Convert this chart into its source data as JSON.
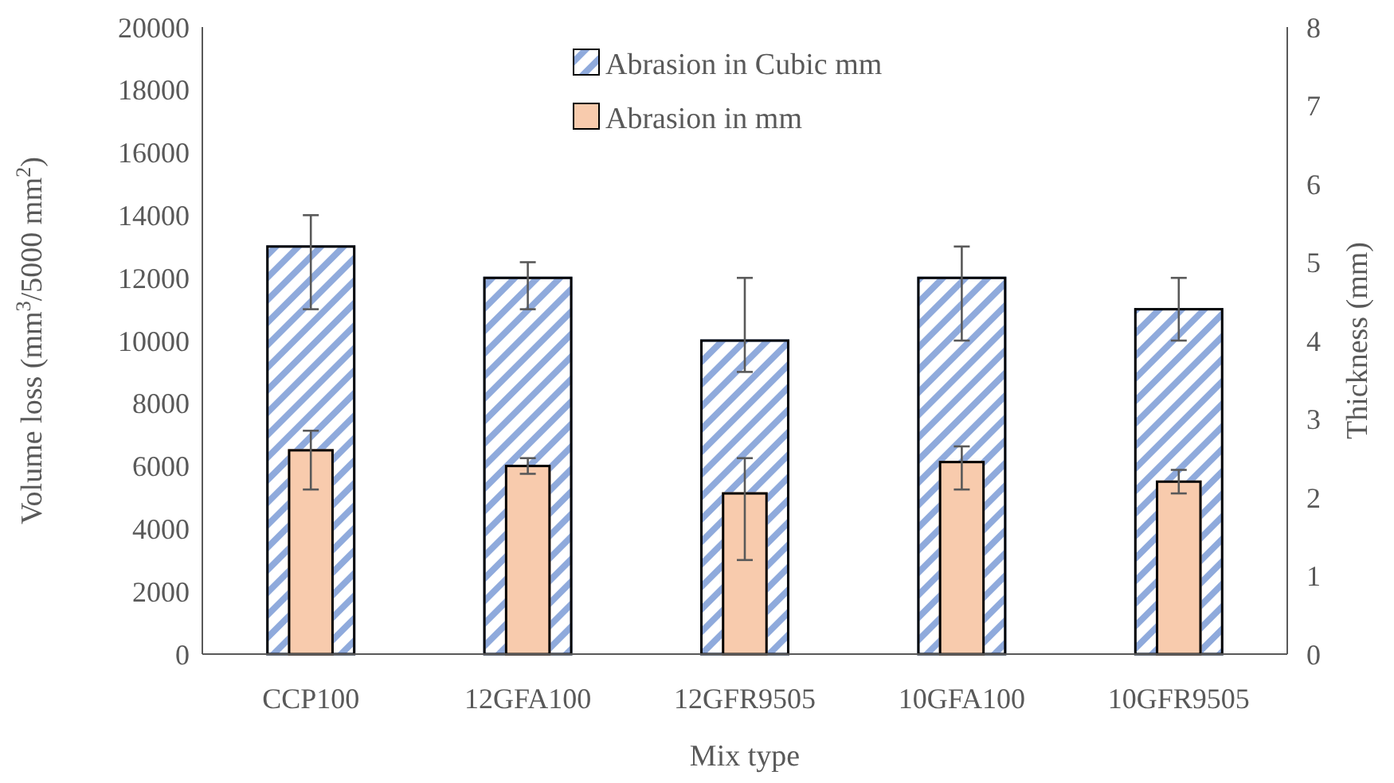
{
  "chart_data": {
    "type": "bar",
    "xlabel": "Mix type",
    "ylabel": "Volume loss (mm$^{3}$/5000 mm$^{2}$)",
    "y2label": "Thickness (mm)",
    "categories": [
      "CCP100",
      "12GFA100",
      "12GFR9505",
      "10GFA100",
      "10GFR9505"
    ],
    "series": [
      {
        "name": "Abrasion in Cubic mm",
        "color": "#8faadc",
        "values": [
          13000,
          12000,
          10000,
          12000,
          11000
        ],
        "errors": [
          [
            11000,
            14000
          ],
          [
            11000,
            12500
          ],
          [
            9000,
            12000
          ],
          [
            10000,
            13000
          ],
          [
            10000,
            12000
          ]
        ]
      },
      {
        "name": "Abrasion in mm",
        "color": "#f8cbad",
        "axis": "y2",
        "values": [
          2.6,
          2.4,
          2.05,
          2.45,
          2.2
        ],
        "errors": [
          [
            2.1,
            2.85
          ],
          [
            2.3,
            2.5
          ],
          [
            1.2,
            2.5
          ],
          [
            2.1,
            2.65
          ],
          [
            2.05,
            2.35
          ]
        ]
      }
    ],
    "ylim": [
      0,
      20000
    ],
    "yticks": [
      0,
      2000,
      4000,
      6000,
      8000,
      10000,
      12000,
      14000,
      16000,
      18000,
      20000
    ],
    "y2lim": [
      0,
      8
    ],
    "y2ticks": [
      0,
      1,
      2,
      3,
      4,
      5,
      6,
      7,
      8
    ],
    "legend": "top",
    "grid": false
  }
}
